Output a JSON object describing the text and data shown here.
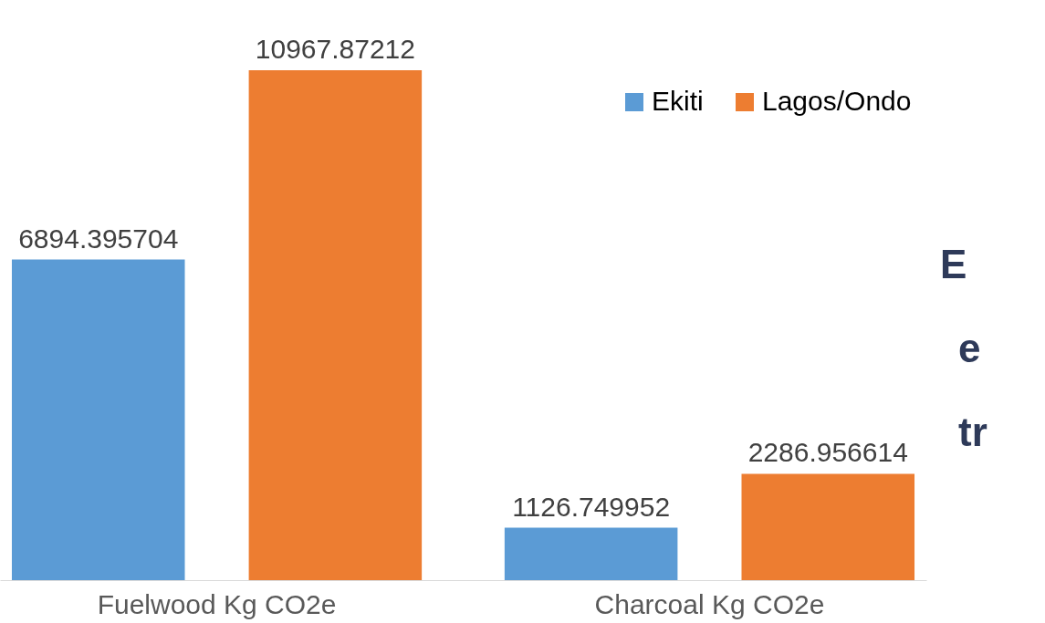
{
  "chart_data": {
    "type": "bar",
    "categories": [
      "Fuelwood Kg CO2e",
      "Charcoal Kg CO2e"
    ],
    "series": [
      {
        "name": "Ekiti",
        "color": "#5b9bd5",
        "values": [
          6894.395704,
          1126.749952
        ]
      },
      {
        "name": "Lagos/Ondo",
        "color": "#ed7d31",
        "values": [
          10967.87212,
          2286.956614
        ]
      }
    ],
    "data_labels": true,
    "legend": "top right",
    "grid": false,
    "annotations": [
      "E",
      "e",
      "tr"
    ]
  }
}
